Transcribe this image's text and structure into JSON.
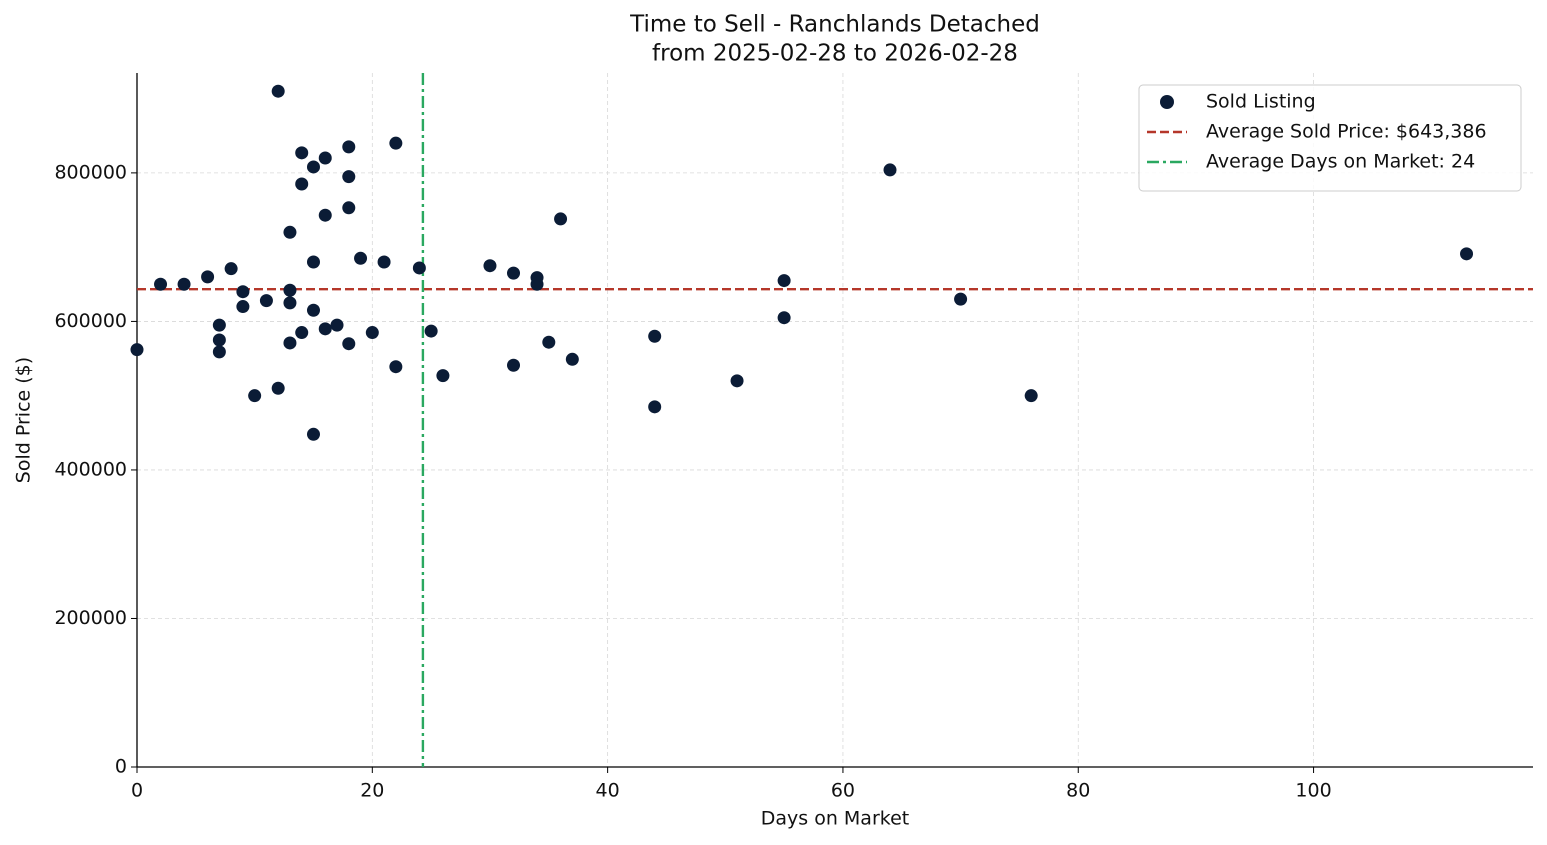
{
  "chart_data": {
    "type": "scatter",
    "title": "Time to Sell - Ranchlands Detached",
    "subtitle": "from 2025-02-28 to 2026-02-28",
    "x_label": "Days on Market",
    "y_label": "Sold Price ($)",
    "xlim": [
      0,
      118.65
    ],
    "ylim": [
      0,
      934500
    ],
    "xticks": [
      0,
      20,
      40,
      60,
      80,
      100
    ],
    "yticks": [
      0,
      200000,
      400000,
      600000,
      800000
    ],
    "grid": true,
    "legend": "upper right",
    "series": [
      {
        "name": "Sold Listing",
        "color": "#0b1c36",
        "x": [
          0,
          2,
          4,
          6,
          8,
          7,
          7,
          7,
          9,
          9,
          10,
          11,
          12,
          12,
          13,
          13,
          13,
          13,
          14,
          14,
          14,
          15,
          15,
          15,
          15,
          16,
          16,
          16,
          17,
          18,
          18,
          18,
          18,
          19,
          20,
          21,
          22,
          22,
          24,
          25,
          26,
          30,
          32,
          32,
          34,
          34,
          35,
          36,
          37,
          44,
          44,
          51,
          55,
          55,
          64,
          70,
          76,
          113
        ],
        "values": [
          562000,
          650000,
          650000,
          660000,
          671000,
          595000,
          575000,
          559000,
          640000,
          620000,
          500000,
          628000,
          910000,
          510000,
          720000,
          642000,
          625000,
          571000,
          827000,
          785000,
          585000,
          808000,
          680000,
          615000,
          448000,
          820000,
          743000,
          590000,
          595000,
          835000,
          795000,
          753000,
          570000,
          685000,
          585000,
          680000,
          840000,
          539000,
          672000,
          587000,
          527000,
          675000,
          665000,
          541000,
          659000,
          650000,
          572000,
          738000,
          549000,
          580000,
          485000,
          520000,
          655000,
          605000,
          804000,
          630000,
          500000,
          691000
        ]
      }
    ],
    "reference_lines": [
      {
        "name": "Average Sold Price: $643,386",
        "orientation": "horizontal",
        "value": 643386,
        "color": "#b5372a",
        "style": "dashed"
      },
      {
        "name": "Average Days on Market: 24",
        "orientation": "vertical",
        "value": 24.3,
        "color": "#2aa860",
        "style": "dashdot"
      }
    ]
  }
}
